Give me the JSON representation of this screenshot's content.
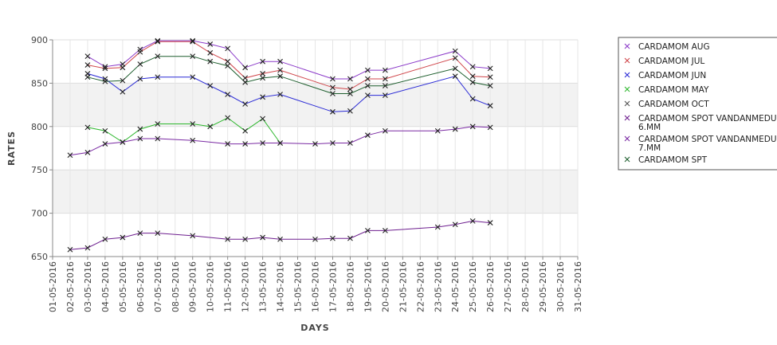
{
  "chart_data": {
    "type": "line",
    "title": "",
    "xlabel": "DAYS",
    "ylabel": "RATES",
    "ylim": [
      650,
      900
    ],
    "yticks": [
      650,
      700,
      750,
      800,
      850,
      900
    ],
    "x_ticks": [
      "01-05-2016",
      "02-05-2016",
      "03-05-2016",
      "04-05-2016",
      "05-05-2016",
      "06-05-2016",
      "07-05-2016",
      "08-05-2016",
      "09-05-2016",
      "10-05-2016",
      "11-05-2016",
      "12-05-2016",
      "13-05-2016",
      "14-05-2016",
      "15-05-2016",
      "16-05-2016",
      "17-05-2016",
      "18-05-2016",
      "19-05-2016",
      "20-05-2016",
      "21-05-2016",
      "22-05-2016",
      "23-05-2016",
      "24-05-2016",
      "25-05-2016",
      "26-05-2016",
      "27-05-2016",
      "28-05-2016",
      "29-05-2016",
      "30-05-2016",
      "31-05-2016"
    ],
    "grid": true,
    "legend_position": "right",
    "series": [
      {
        "name": "CARDAMOM AUG",
        "color": "#8b3ac9",
        "points": [
          [
            3,
            881
          ],
          [
            4,
            869
          ],
          [
            5,
            872
          ],
          [
            6,
            889
          ],
          [
            7,
            899
          ],
          [
            9,
            899
          ],
          [
            10,
            895
          ],
          [
            11,
            890
          ],
          [
            12,
            868
          ],
          [
            13,
            875
          ],
          [
            14,
            875
          ],
          [
            17,
            855
          ],
          [
            18,
            855
          ],
          [
            19,
            865
          ],
          [
            20,
            865
          ],
          [
            24,
            887
          ],
          [
            25,
            869
          ],
          [
            26,
            867
          ]
        ]
      },
      {
        "name": "CARDAMOM JUL",
        "color": "#d0474c",
        "points": [
          [
            3,
            871
          ],
          [
            4,
            867
          ],
          [
            5,
            868
          ],
          [
            6,
            886
          ],
          [
            7,
            898
          ],
          [
            9,
            898
          ],
          [
            10,
            885
          ],
          [
            11,
            875
          ],
          [
            12,
            856
          ],
          [
            13,
            861
          ],
          [
            14,
            865
          ],
          [
            17,
            845
          ],
          [
            18,
            843
          ],
          [
            19,
            855
          ],
          [
            20,
            855
          ],
          [
            24,
            879
          ],
          [
            25,
            858
          ],
          [
            26,
            857
          ]
        ]
      },
      {
        "name": "CARDAMOM JUN",
        "color": "#2a2ad6",
        "points": [
          [
            3,
            861
          ],
          [
            4,
            855
          ],
          [
            5,
            840
          ],
          [
            6,
            855
          ],
          [
            7,
            857
          ],
          [
            9,
            857
          ],
          [
            10,
            847
          ],
          [
            11,
            837
          ],
          [
            12,
            826
          ],
          [
            13,
            834
          ],
          [
            14,
            837
          ],
          [
            17,
            817
          ],
          [
            18,
            818
          ],
          [
            19,
            836
          ],
          [
            20,
            836
          ],
          [
            24,
            858
          ],
          [
            25,
            832
          ],
          [
            26,
            824
          ]
        ]
      },
      {
        "name": "CARDAMOM MAY",
        "color": "#2fb82f",
        "points": [
          [
            3,
            799
          ],
          [
            4,
            795
          ],
          [
            5,
            782
          ],
          [
            6,
            797
          ],
          [
            7,
            803
          ],
          [
            9,
            803
          ],
          [
            10,
            800
          ],
          [
            11,
            810
          ],
          [
            12,
            795
          ],
          [
            13,
            809
          ],
          [
            14,
            781
          ]
        ]
      },
      {
        "name": "CARDAMOM OCT",
        "color": "#555555",
        "points": []
      },
      {
        "name": "CARDAMOM SPOT VANDANMEDU 6.MM",
        "color": "#6e1f8f",
        "points": [
          [
            2,
            658
          ],
          [
            3,
            660
          ],
          [
            4,
            670
          ],
          [
            5,
            672
          ],
          [
            6,
            677
          ],
          [
            7,
            677
          ],
          [
            9,
            674
          ],
          [
            11,
            670
          ],
          [
            12,
            670
          ],
          [
            13,
            672
          ],
          [
            14,
            670
          ],
          [
            16,
            670
          ],
          [
            17,
            671
          ],
          [
            18,
            671
          ],
          [
            19,
            680
          ],
          [
            20,
            680
          ],
          [
            23,
            684
          ],
          [
            24,
            687
          ],
          [
            25,
            691
          ],
          [
            26,
            689
          ]
        ]
      },
      {
        "name": "CARDAMOM SPOT VANDANMEDU 7.MM",
        "color": "#7a2aa3",
        "points": [
          [
            2,
            767
          ],
          [
            3,
            770
          ],
          [
            4,
            780
          ],
          [
            5,
            782
          ],
          [
            6,
            786
          ],
          [
            7,
            786
          ],
          [
            9,
            784
          ],
          [
            11,
            780
          ],
          [
            12,
            780
          ],
          [
            13,
            781
          ],
          [
            14,
            781
          ],
          [
            16,
            780
          ],
          [
            17,
            781
          ],
          [
            18,
            781
          ],
          [
            19,
            790
          ],
          [
            20,
            795
          ],
          [
            23,
            795
          ],
          [
            24,
            797
          ],
          [
            25,
            800
          ],
          [
            26,
            799
          ]
        ]
      },
      {
        "name": "CARDAMOM SPT",
        "color": "#1f5f2f",
        "points": [
          [
            3,
            857
          ],
          [
            4,
            852
          ],
          [
            5,
            853
          ],
          [
            6,
            872
          ],
          [
            7,
            881
          ],
          [
            9,
            881
          ],
          [
            10,
            875
          ],
          [
            11,
            870
          ],
          [
            12,
            851
          ],
          [
            13,
            856
          ],
          [
            14,
            858
          ],
          [
            17,
            838
          ],
          [
            18,
            838
          ],
          [
            19,
            847
          ],
          [
            20,
            847
          ],
          [
            24,
            867
          ],
          [
            25,
            851
          ],
          [
            26,
            847
          ]
        ]
      }
    ],
    "legend": [
      {
        "line1": "CARDAMOM AUG",
        "line2": "",
        "color": "#8b3ac9"
      },
      {
        "line1": "CARDAMOM JUL",
        "line2": "",
        "color": "#d0474c"
      },
      {
        "line1": "CARDAMOM JUN",
        "line2": "",
        "color": "#2a2ad6"
      },
      {
        "line1": "CARDAMOM MAY",
        "line2": "",
        "color": "#2fb82f"
      },
      {
        "line1": "CARDAMOM OCT",
        "line2": "",
        "color": "#555555"
      },
      {
        "line1": "CARDAMOM SPOT VANDANMEDU",
        "line2": "6.MM",
        "color": "#6e1f8f"
      },
      {
        "line1": "CARDAMOM SPOT VANDANMEDU",
        "line2": "7.MM",
        "color": "#7a2aa3"
      },
      {
        "line1": "CARDAMOM SPT",
        "line2": "",
        "color": "#1f5f2f"
      }
    ]
  }
}
